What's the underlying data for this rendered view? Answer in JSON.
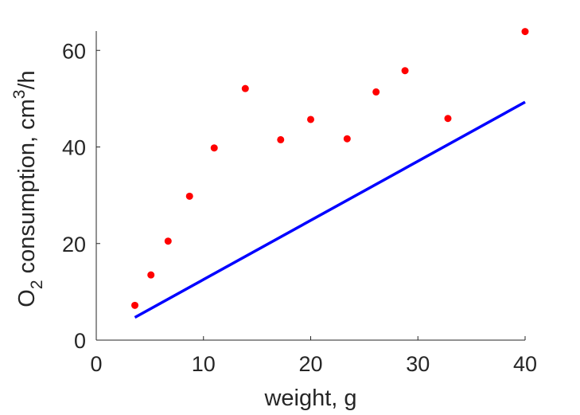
{
  "chart_data": {
    "type": "scatter",
    "title": "",
    "xlabel": "weight, g",
    "ylabel": {
      "parts": [
        {
          "text": "O",
          "shift": "none"
        },
        {
          "text": "2",
          "shift": "sub"
        },
        {
          "text": " consumption, cm",
          "shift": "none"
        },
        {
          "text": "3",
          "shift": "super"
        },
        {
          "text": "/h",
          "shift": "none"
        }
      ]
    },
    "xlim": [
      0,
      40
    ],
    "ylim": [
      0,
      64
    ],
    "xticks": [
      0,
      10,
      20,
      30,
      40
    ],
    "yticks": [
      0,
      20,
      40,
      60
    ],
    "grid": false,
    "series": [
      {
        "kind": "scatter",
        "color": "#ff0000",
        "x": [
          3.6,
          5.1,
          6.7,
          8.7,
          11.0,
          13.9,
          17.2,
          20.0,
          23.4,
          26.1,
          28.8,
          32.8,
          40.0
        ],
        "y": [
          7.2,
          13.5,
          20.5,
          29.8,
          39.8,
          52.1,
          41.5,
          45.7,
          41.7,
          51.4,
          55.8,
          45.9,
          63.9
        ]
      },
      {
        "kind": "line",
        "color": "#0000ff",
        "x": [
          3.6,
          40.0
        ],
        "y": [
          4.7,
          49.3
        ]
      }
    ]
  }
}
